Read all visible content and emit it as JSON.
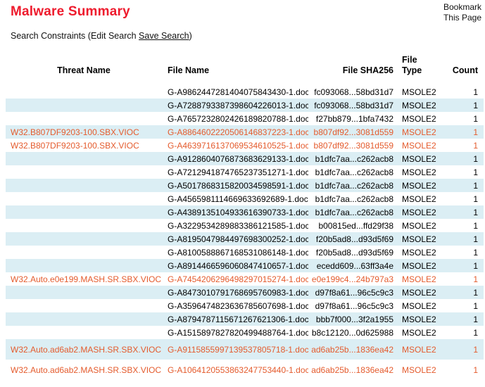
{
  "page": {
    "title": "Malware Summary",
    "bookmark": {
      "line1": "Bookmark",
      "line2": "This Page"
    },
    "search_constraints": {
      "prefix": "Search Constraints (",
      "edit_search": "Edit Search",
      "save_search": "Save Search",
      "suffix": ")"
    }
  },
  "colors": {
    "accent_red": "#ee1b2d",
    "highlight_orange": "#e45b2d",
    "row_alt_blue": "#dbeef4"
  },
  "table": {
    "columns": [
      "Threat Name",
      "File Name",
      "File SHA256",
      "File Type",
      "Count"
    ],
    "rows": [
      {
        "threat": "",
        "file": "G-A9862447281404075843430-1.doc",
        "sha": "fc093068...58bd31d7",
        "type": "MSOLE2",
        "count": "1",
        "highlighted": false,
        "tall": false
      },
      {
        "threat": "",
        "file": "G-A7288793387398604226013-1.doc",
        "sha": "fc093068...58bd31d7",
        "type": "MSOLE2",
        "count": "1",
        "highlighted": false,
        "tall": false
      },
      {
        "threat": "",
        "file": "G-A7657232802426189820788-1.doc",
        "sha": "f27bb879...1bfa7432",
        "type": "MSOLE2",
        "count": "1",
        "highlighted": false,
        "tall": false
      },
      {
        "threat": "W32.B807DF9203-100.SBX.VIOC",
        "file": "G-A8864602220506146837223-1.doc",
        "sha": "b807df92...3081d559",
        "type": "MSOLE2",
        "count": "1",
        "highlighted": true,
        "tall": false
      },
      {
        "threat": "W32.B807DF9203-100.SBX.VIOC",
        "file": "G-A4639716137069534610525-1.doc",
        "sha": "b807df92...3081d559",
        "type": "MSOLE2",
        "count": "1",
        "highlighted": true,
        "tall": false
      },
      {
        "threat": "",
        "file": "G-A9128604076873683629133-1.doc",
        "sha": "b1dfc7aa...c262acb8",
        "type": "MSOLE2",
        "count": "1",
        "highlighted": false,
        "tall": false
      },
      {
        "threat": "",
        "file": "G-A7212941874765237351271-1.doc",
        "sha": "b1dfc7aa...c262acb8",
        "type": "MSOLE2",
        "count": "1",
        "highlighted": false,
        "tall": false
      },
      {
        "threat": "",
        "file": "G-A5017868315820034598591-1.doc",
        "sha": "b1dfc7aa...c262acb8",
        "type": "MSOLE2",
        "count": "1",
        "highlighted": false,
        "tall": false
      },
      {
        "threat": "",
        "file": "G-A4565981114669633692689-1.doc",
        "sha": "b1dfc7aa...c262acb8",
        "type": "MSOLE2",
        "count": "1",
        "highlighted": false,
        "tall": false
      },
      {
        "threat": "",
        "file": "G-A4389135104933616390733-1.doc",
        "sha": "b1dfc7aa...c262acb8",
        "type": "MSOLE2",
        "count": "1",
        "highlighted": false,
        "tall": false
      },
      {
        "threat": "",
        "file": "G-A3229534289883386121585-1.doc",
        "sha": "b00815ed...ffd29f38",
        "type": "MSOLE2",
        "count": "1",
        "highlighted": false,
        "tall": false
      },
      {
        "threat": "",
        "file": "G-A8195047984497698300252-1.doc",
        "sha": "f20b5ad8...d93d5f69",
        "type": "MSOLE2",
        "count": "1",
        "highlighted": false,
        "tall": false
      },
      {
        "threat": "",
        "file": "G-A8100588867168531086148-1.doc",
        "sha": "f20b5ad8...d93d5f69",
        "type": "MSOLE2",
        "count": "1",
        "highlighted": false,
        "tall": false
      },
      {
        "threat": "",
        "file": "G-A8914466596060847410657-1.doc",
        "sha": "ecedd609...63ff3a4e",
        "type": "MSOLE2",
        "count": "1",
        "highlighted": false,
        "tall": false
      },
      {
        "threat": "W32.Auto.e0e199.MASH.SR.SBX.VIOC",
        "file": "G-A7454206296498297015274-1.doc",
        "sha": "e0e199c4...24b797a3",
        "type": "MSOLE2",
        "count": "1",
        "highlighted": true,
        "tall": false
      },
      {
        "threat": "",
        "file": "G-A8473010791768695760983-1.doc",
        "sha": "d97f8a61...96c5c9c3",
        "type": "MSOLE2",
        "count": "1",
        "highlighted": false,
        "tall": false
      },
      {
        "threat": "",
        "file": "G-A3596474823636785607698-1.doc",
        "sha": "d97f8a61...96c5c9c3",
        "type": "MSOLE2",
        "count": "1",
        "highlighted": false,
        "tall": false
      },
      {
        "threat": "",
        "file": "G-A8794787115671267621306-1.doc",
        "sha": "bbb7f000...3f2a1955",
        "type": "MSOLE2",
        "count": "1",
        "highlighted": false,
        "tall": false
      },
      {
        "threat": "",
        "file": "G-A1515897827820499488764-1.doc",
        "sha": "b8c12120...0d625988",
        "type": "MSOLE2",
        "count": "1",
        "highlighted": false,
        "tall": false
      },
      {
        "threat": "W32.Auto.ad6ab2.MASH.SR.SBX.VIOC",
        "file": "G-A9115855997139537805718-1.doc",
        "sha": "ad6ab25b...1836ea42",
        "type": "MSOLE2",
        "count": "1",
        "highlighted": true,
        "tall": true
      },
      {
        "threat": "W32.Auto.ad6ab2.MASH.SR.SBX.VIOC",
        "file": "G-A1064120553863247753440-1.doc",
        "sha": "ad6ab25b...1836ea42",
        "type": "MSOLE2",
        "count": "1",
        "highlighted": true,
        "tall": true
      }
    ]
  }
}
